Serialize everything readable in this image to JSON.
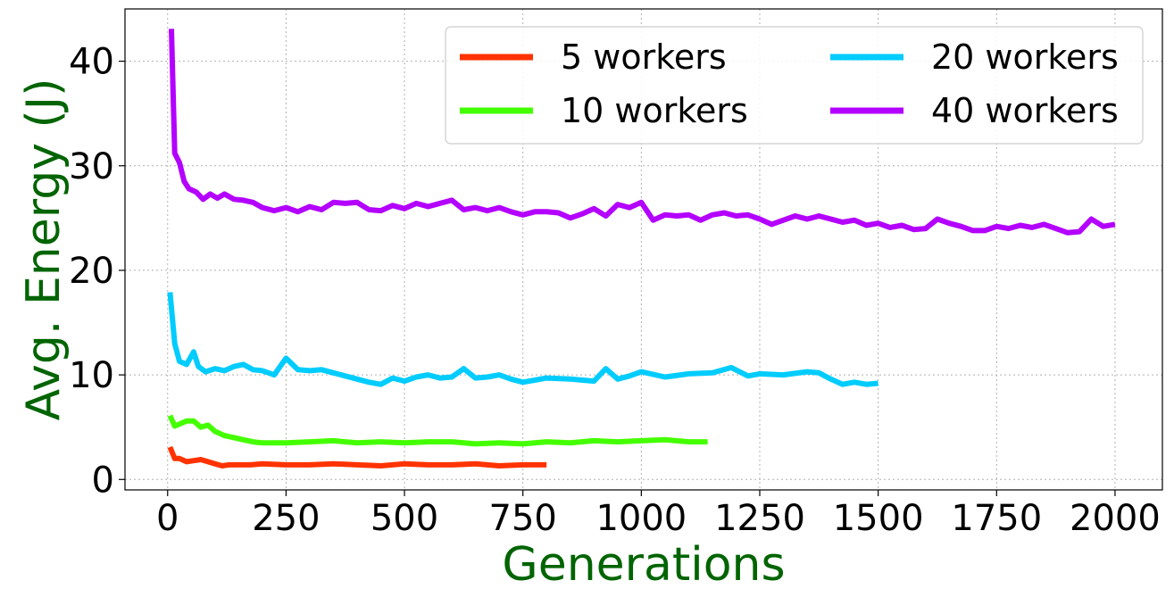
{
  "chart_data": {
    "type": "line",
    "xlabel": "Generations",
    "ylabel": "Avg. Energy (J)",
    "label_color": "#006400",
    "xlim": [
      -90,
      2100
    ],
    "ylim": [
      -1,
      45
    ],
    "x_ticks": [
      0,
      250,
      500,
      750,
      1000,
      1250,
      1500,
      1750,
      2000
    ],
    "y_ticks": [
      0,
      10,
      20,
      30,
      40
    ],
    "grid": true,
    "legend_position": "top-right",
    "legend_columns": 2,
    "series": [
      {
        "name": "5 workers",
        "color": "#ff3300",
        "x": [
          5,
          15,
          25,
          40,
          55,
          70,
          85,
          100,
          115,
          130,
          150,
          175,
          200,
          250,
          300,
          350,
          400,
          450,
          500,
          550,
          600,
          650,
          700,
          750,
          800
        ],
        "y": [
          3.1,
          2.0,
          2.0,
          1.7,
          1.8,
          1.9,
          1.7,
          1.5,
          1.3,
          1.4,
          1.4,
          1.4,
          1.5,
          1.4,
          1.4,
          1.5,
          1.4,
          1.3,
          1.5,
          1.4,
          1.4,
          1.5,
          1.3,
          1.4,
          1.4
        ]
      },
      {
        "name": "10 workers",
        "color": "#44ff00",
        "x": [
          5,
          15,
          25,
          40,
          55,
          70,
          85,
          100,
          120,
          140,
          160,
          180,
          200,
          250,
          300,
          350,
          400,
          450,
          500,
          550,
          600,
          650,
          700,
          750,
          800,
          850,
          900,
          950,
          1000,
          1050,
          1100,
          1140
        ],
        "y": [
          6.1,
          5.1,
          5.3,
          5.6,
          5.6,
          5.0,
          5.2,
          4.6,
          4.2,
          4.0,
          3.8,
          3.6,
          3.5,
          3.5,
          3.6,
          3.7,
          3.5,
          3.6,
          3.5,
          3.6,
          3.6,
          3.4,
          3.5,
          3.4,
          3.6,
          3.5,
          3.7,
          3.6,
          3.7,
          3.8,
          3.6,
          3.6
        ]
      },
      {
        "name": "20 workers",
        "color": "#00ccff",
        "x": [
          5,
          15,
          25,
          40,
          55,
          65,
          80,
          100,
          120,
          140,
          160,
          180,
          200,
          225,
          250,
          275,
          300,
          325,
          350,
          375,
          400,
          425,
          450,
          475,
          500,
          525,
          550,
          575,
          600,
          625,
          650,
          675,
          700,
          725,
          750,
          775,
          800,
          850,
          900,
          925,
          950,
          975,
          1000,
          1050,
          1100,
          1150,
          1190,
          1225,
          1250,
          1300,
          1350,
          1375,
          1400,
          1425,
          1450,
          1475,
          1500
        ],
        "y": [
          17.9,
          13.0,
          11.3,
          11.0,
          12.2,
          10.8,
          10.3,
          10.6,
          10.4,
          10.8,
          11.0,
          10.5,
          10.4,
          10.0,
          11.6,
          10.5,
          10.4,
          10.5,
          10.2,
          9.9,
          9.6,
          9.3,
          9.1,
          9.7,
          9.4,
          9.8,
          10.0,
          9.7,
          9.8,
          10.6,
          9.7,
          9.8,
          10.0,
          9.6,
          9.3,
          9.5,
          9.7,
          9.6,
          9.4,
          10.6,
          9.6,
          9.9,
          10.3,
          9.8,
          10.1,
          10.2,
          10.7,
          9.9,
          10.1,
          10.0,
          10.3,
          10.2,
          9.6,
          9.1,
          9.3,
          9.1,
          9.2
        ]
      },
      {
        "name": "40 workers",
        "color": "#b300ff",
        "x": [
          8,
          15,
          25,
          35,
          45,
          60,
          75,
          90,
          105,
          120,
          140,
          160,
          180,
          200,
          225,
          250,
          275,
          300,
          325,
          350,
          375,
          400,
          425,
          450,
          475,
          500,
          525,
          550,
          575,
          600,
          625,
          650,
          675,
          700,
          725,
          750,
          775,
          800,
          825,
          850,
          875,
          900,
          925,
          950,
          975,
          1000,
          1025,
          1050,
          1075,
          1100,
          1125,
          1150,
          1175,
          1200,
          1225,
          1250,
          1275,
          1300,
          1325,
          1350,
          1375,
          1400,
          1425,
          1450,
          1475,
          1500,
          1525,
          1550,
          1575,
          1600,
          1625,
          1650,
          1675,
          1700,
          1725,
          1750,
          1775,
          1800,
          1825,
          1850,
          1875,
          1900,
          1925,
          1950,
          1975,
          2000
        ],
        "y": [
          43.1,
          31.2,
          30.3,
          28.5,
          27.8,
          27.5,
          26.8,
          27.3,
          26.9,
          27.3,
          26.8,
          26.7,
          26.5,
          26.0,
          25.7,
          26.0,
          25.6,
          26.1,
          25.8,
          26.5,
          26.4,
          26.5,
          25.8,
          25.7,
          26.2,
          25.9,
          26.4,
          26.1,
          26.4,
          26.7,
          25.8,
          26.0,
          25.7,
          26.0,
          25.6,
          25.3,
          25.6,
          25.6,
          25.5,
          25.0,
          25.4,
          25.9,
          25.2,
          26.3,
          26.0,
          26.5,
          24.8,
          25.3,
          25.2,
          25.3,
          24.8,
          25.3,
          25.5,
          25.2,
          25.3,
          24.9,
          24.4,
          24.8,
          25.2,
          24.9,
          25.2,
          24.9,
          24.6,
          24.8,
          24.3,
          24.5,
          24.1,
          24.3,
          23.9,
          24.0,
          24.9,
          24.5,
          24.2,
          23.8,
          23.8,
          24.2,
          24.0,
          24.3,
          24.1,
          24.4,
          24.0,
          23.6,
          23.7,
          24.9,
          24.2,
          24.4
        ]
      }
    ]
  }
}
